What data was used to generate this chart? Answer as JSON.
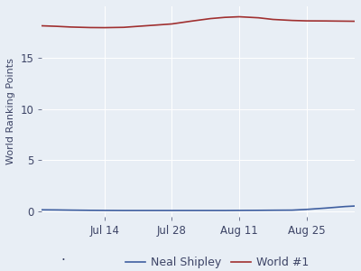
{
  "title": "",
  "ylabel": "World Ranking Points",
  "background_color": "#e8eef5",
  "plot_background_color": "#e8eef5",
  "grid_color": "#ffffff",
  "x_tick_labels": [
    "Jul 14",
    "Jul 28",
    "Aug 11",
    "Aug 25"
  ],
  "x_tick_positions": [
    13,
    27,
    41,
    55
  ],
  "ylim": [
    -0.5,
    20
  ],
  "yticks": [
    0,
    5,
    10,
    15
  ],
  "xlim": [
    0,
    65
  ],
  "neal_shipley": {
    "x": [
      0,
      3,
      6,
      10,
      13,
      17,
      20,
      24,
      27,
      31,
      35,
      38,
      41,
      45,
      48,
      52,
      55,
      59,
      63,
      65
    ],
    "y": [
      0.18,
      0.17,
      0.15,
      0.13,
      0.12,
      0.11,
      0.11,
      0.11,
      0.11,
      0.11,
      0.11,
      0.11,
      0.12,
      0.13,
      0.14,
      0.15,
      0.22,
      0.35,
      0.5,
      0.55
    ],
    "color": "#3f5fa0",
    "linewidth": 1.2,
    "label": "Neal Shipley"
  },
  "world1": {
    "x": [
      0,
      3,
      6,
      10,
      13,
      17,
      20,
      24,
      27,
      31,
      35,
      38,
      41,
      45,
      48,
      52,
      55,
      59,
      63,
      65
    ],
    "y": [
      18.1,
      18.05,
      17.98,
      17.93,
      17.92,
      17.95,
      18.05,
      18.18,
      18.28,
      18.55,
      18.8,
      18.92,
      18.98,
      18.88,
      18.72,
      18.62,
      18.58,
      18.57,
      18.55,
      18.54
    ],
    "color": "#a03030",
    "linewidth": 1.2,
    "label": "World #1"
  },
  "figsize": [
    4.0,
    3.0
  ],
  "dpi": 100,
  "ylabel_fontsize": 8,
  "tick_fontsize": 8.5,
  "legend_fontsize": 9
}
